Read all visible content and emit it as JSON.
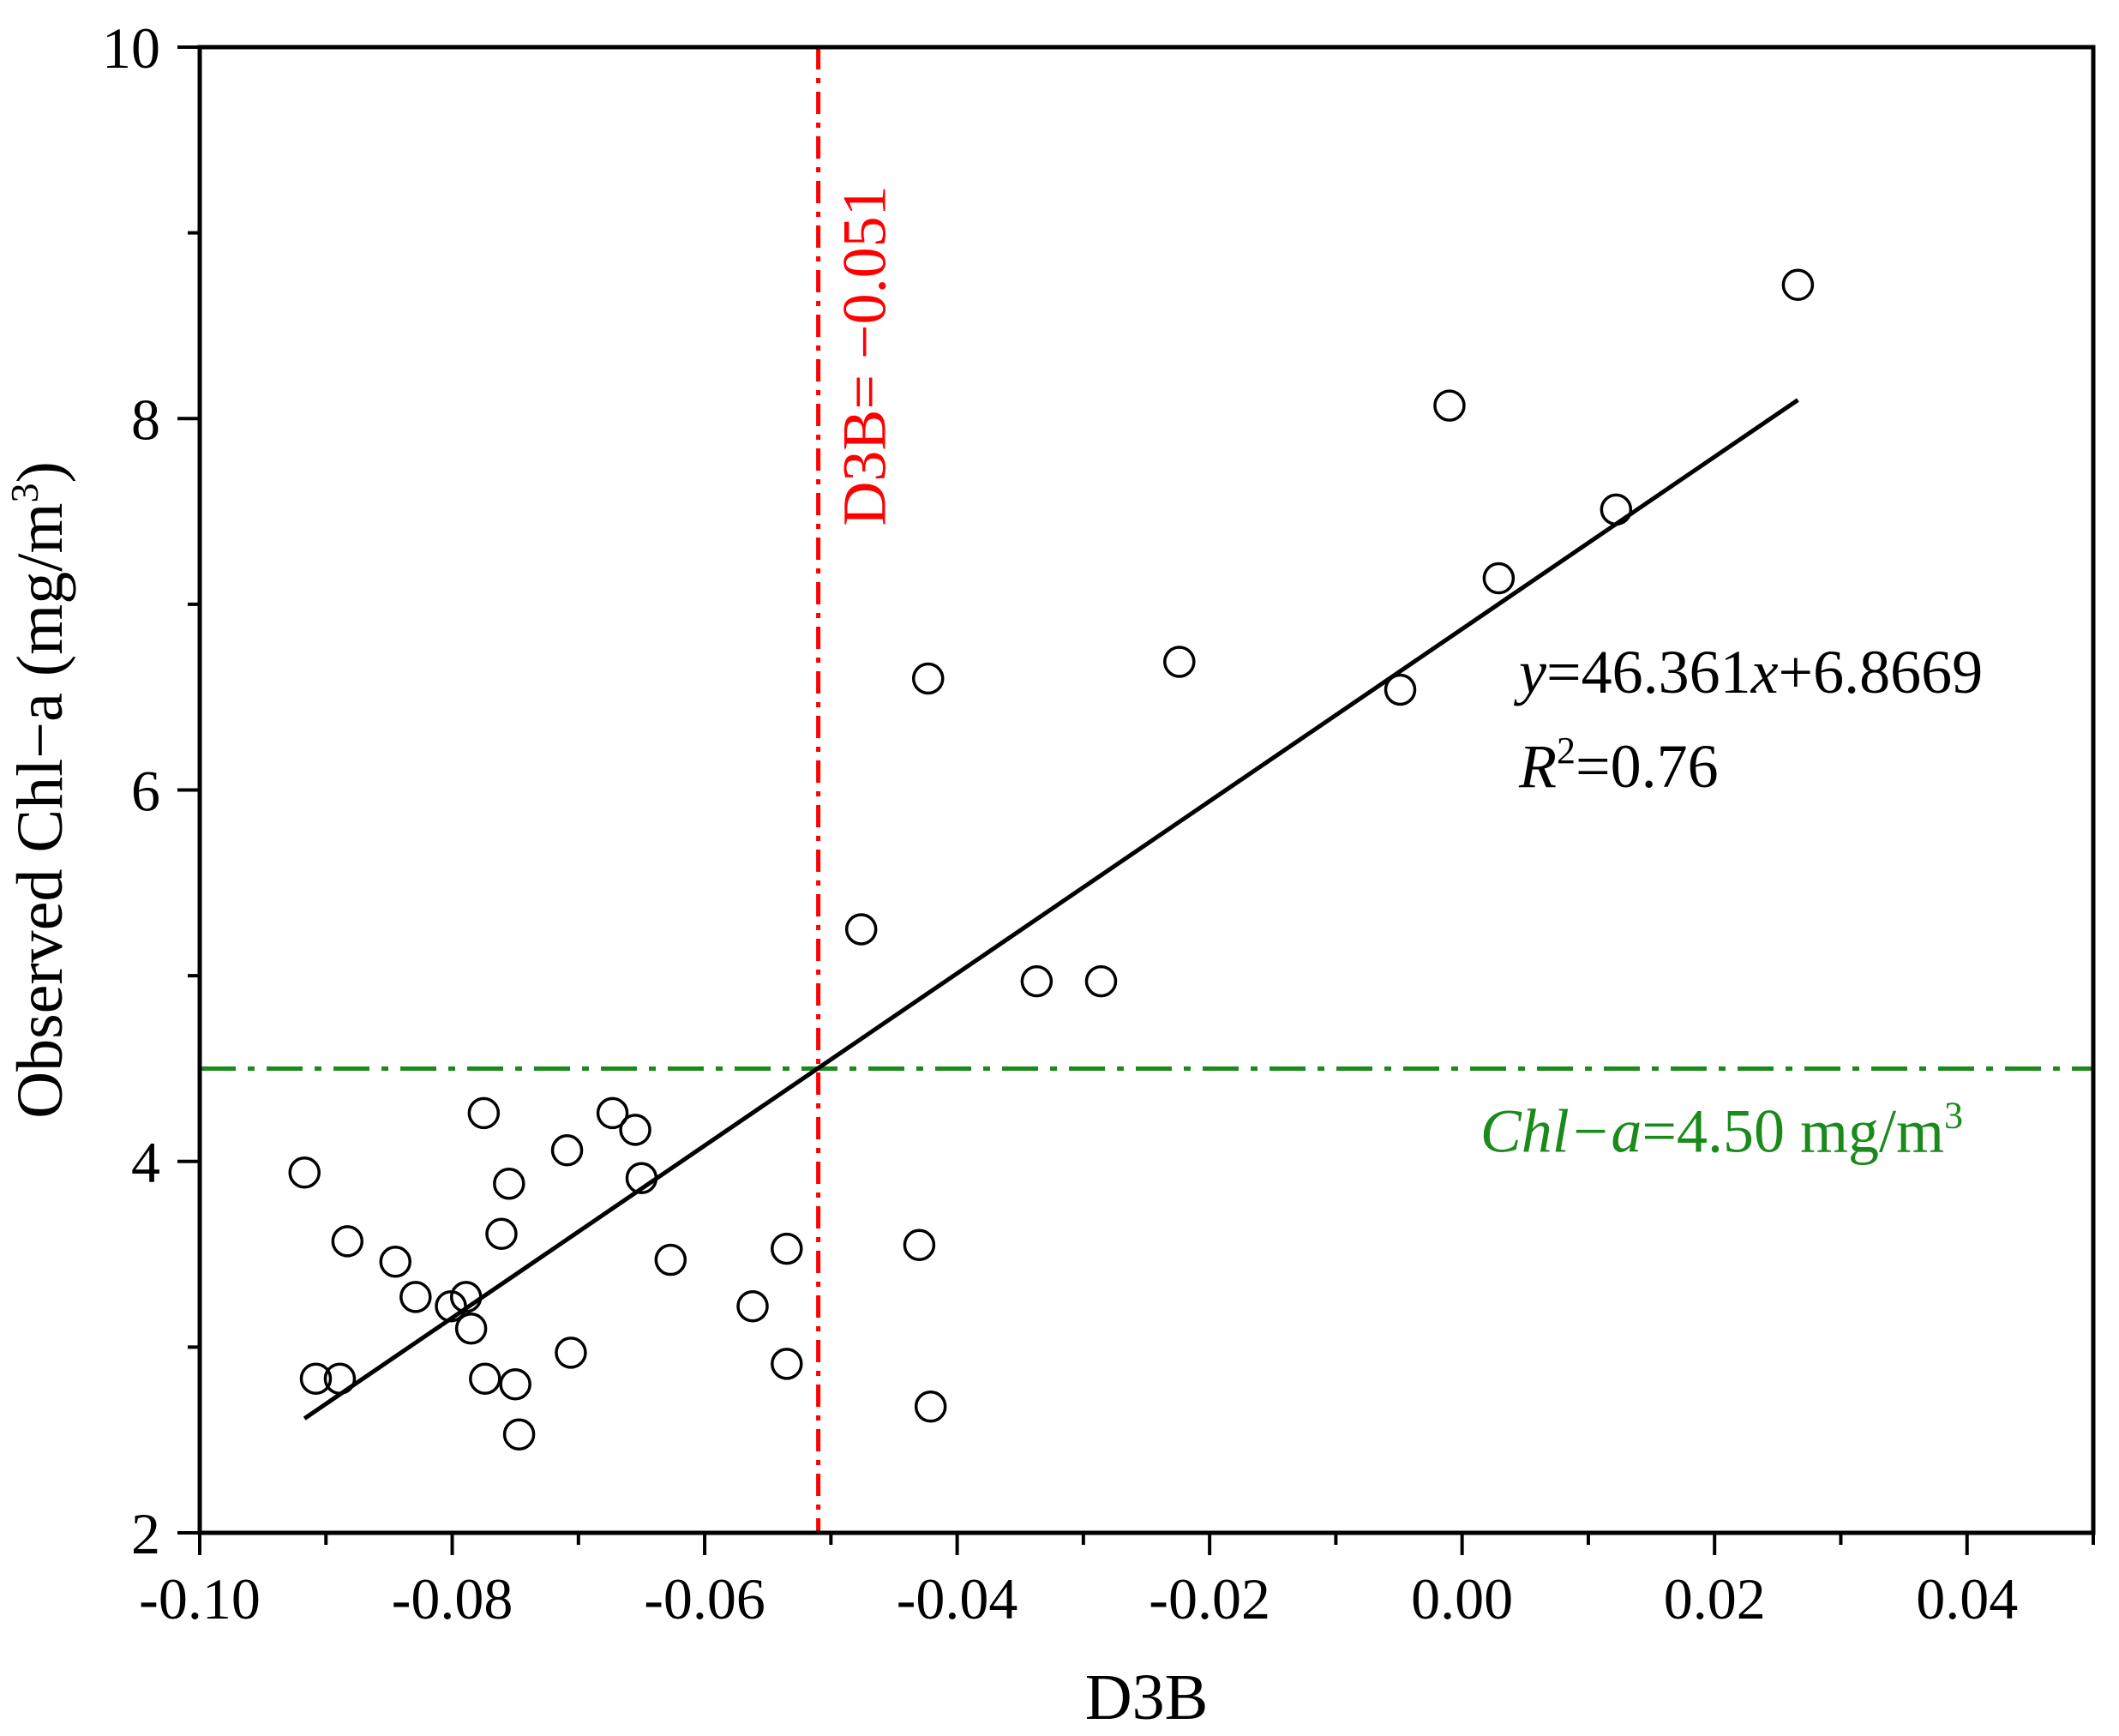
{
  "chart_data": {
    "type": "scatter",
    "title": "",
    "xlabel": "D3B",
    "ylabel": "Observed Chl−a (mg/m",
    "ylabel_sup": "3",
    "ylabel_close": ")",
    "xlim": [
      -0.1,
      0.05
    ],
    "ylim": [
      2,
      10
    ],
    "xticks": [
      -0.1,
      -0.08,
      -0.06,
      -0.04,
      -0.02,
      0.0,
      0.02,
      0.04
    ],
    "xtick_labels": [
      "-0.10",
      "-0.08",
      "-0.06",
      "-0.04",
      "-0.02",
      "0.00",
      "0.02",
      "0.04"
    ],
    "xminor_ticks": [
      -0.09,
      -0.07,
      -0.05,
      -0.03,
      -0.01,
      0.01,
      0.03,
      0.05
    ],
    "yticks": [
      2,
      4,
      6,
      8,
      10
    ],
    "ytick_labels": [
      "2",
      "4",
      "6",
      "8",
      "10"
    ],
    "yminor_ticks": [
      3,
      5,
      7,
      9
    ],
    "points": [
      {
        "x": -0.0917,
        "y": 3.94
      },
      {
        "x": -0.0908,
        "y": 2.83
      },
      {
        "x": -0.0889,
        "y": 2.83
      },
      {
        "x": -0.0883,
        "y": 3.57
      },
      {
        "x": -0.0845,
        "y": 3.46
      },
      {
        "x": -0.0829,
        "y": 3.27
      },
      {
        "x": -0.0801,
        "y": 3.22
      },
      {
        "x": -0.0789,
        "y": 3.27
      },
      {
        "x": -0.0785,
        "y": 3.1
      },
      {
        "x": -0.0775,
        "y": 4.26
      },
      {
        "x": -0.0774,
        "y": 2.83
      },
      {
        "x": -0.0761,
        "y": 3.61
      },
      {
        "x": -0.0755,
        "y": 3.88
      },
      {
        "x": -0.075,
        "y": 2.8
      },
      {
        "x": -0.0747,
        "y": 2.53
      },
      {
        "x": -0.0709,
        "y": 4.06
      },
      {
        "x": -0.0706,
        "y": 2.97
      },
      {
        "x": -0.0673,
        "y": 4.26
      },
      {
        "x": -0.0655,
        "y": 4.17
      },
      {
        "x": -0.065,
        "y": 3.91
      },
      {
        "x": -0.0627,
        "y": 3.47
      },
      {
        "x": -0.0562,
        "y": 3.22
      },
      {
        "x": -0.0535,
        "y": 3.53
      },
      {
        "x": -0.0535,
        "y": 2.91
      },
      {
        "x": -0.0476,
        "y": 5.25
      },
      {
        "x": -0.043,
        "y": 3.55
      },
      {
        "x": -0.0423,
        "y": 6.6
      },
      {
        "x": -0.0421,
        "y": 2.68
      },
      {
        "x": -0.0337,
        "y": 4.97
      },
      {
        "x": -0.0286,
        "y": 4.97
      },
      {
        "x": -0.0224,
        "y": 6.69
      },
      {
        "x": -0.0049,
        "y": 6.54
      },
      {
        "x": -0.001,
        "y": 8.07
      },
      {
        "x": 0.0029,
        "y": 7.14
      },
      {
        "x": 0.0122,
        "y": 7.51
      },
      {
        "x": 0.0266,
        "y": 8.72
      }
    ],
    "fit": {
      "slope": 46.361,
      "intercept": 6.8669,
      "x_start": -0.0917,
      "x_end": 0.0266
    },
    "vline": {
      "x": -0.051,
      "color": "#ff0000",
      "label": "D3B= −0.051"
    },
    "hline": {
      "y": 4.5,
      "color": "#1a8a1a",
      "label_italic": "Chl−a",
      "label_rest": "=4.50 mg/m",
      "label_sup": "3"
    },
    "equation": {
      "y": "y",
      "eq_mid": "=46.361",
      "x": "x",
      "eq_tail": "+6.8669",
      "r": "R",
      "r_sup": "2",
      "r_tail": "=0.76"
    }
  }
}
